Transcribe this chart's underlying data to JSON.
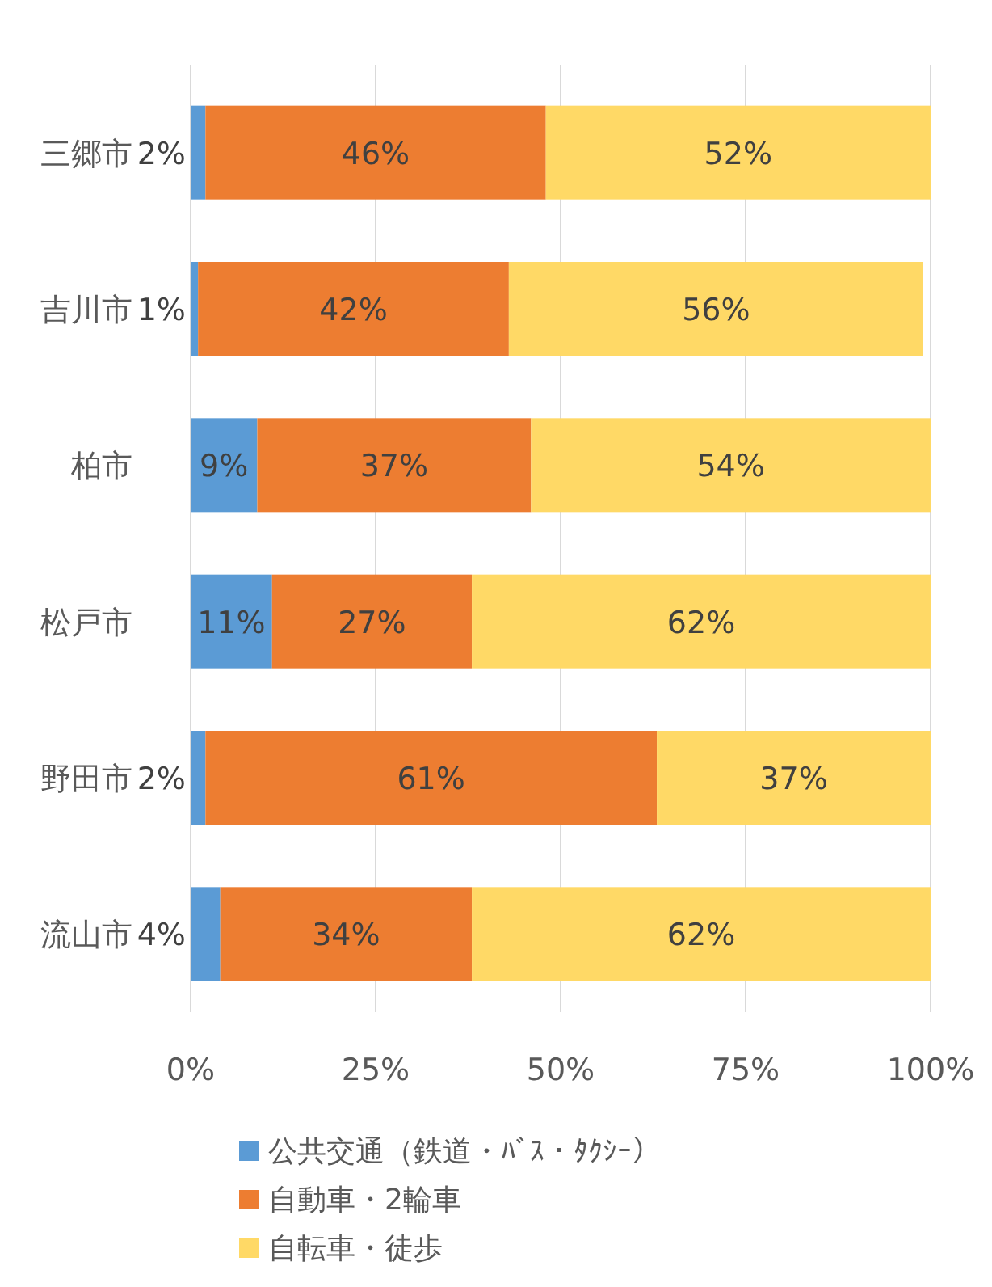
{
  "chart_data": {
    "type": "bar",
    "orientation": "horizontal",
    "stacked": true,
    "categories": [
      "三郷市",
      "吉川市",
      "柏市",
      "松戸市",
      "野田市",
      "流山市"
    ],
    "series": [
      {
        "name": "公共交通（鉄道・ﾊﾞｽ・ﾀｸｼｰ）",
        "color": "#5b9bd5",
        "values": [
          2,
          1,
          9,
          11,
          2,
          4
        ],
        "value_labels": [
          "2%",
          "1%",
          "9%",
          "11%",
          "2%",
          "4%"
        ]
      },
      {
        "name": "自動車・2輪車",
        "color": "#ed7d31",
        "values": [
          46,
          42,
          37,
          27,
          61,
          34
        ],
        "value_labels": [
          "46%",
          "42%",
          "37%",
          "27%",
          "61%",
          "34%"
        ]
      },
      {
        "name": "自転車・徒歩",
        "color": "#ffd966",
        "values": [
          52,
          56,
          54,
          62,
          37,
          62
        ],
        "value_labels": [
          "52%",
          "56%",
          "54%",
          "62%",
          "37%",
          "62%"
        ]
      }
    ],
    "xlim": [
      0,
      100
    ],
    "xticks": [
      {
        "value": 0,
        "label": "0%"
      },
      {
        "value": 25,
        "label": "25%"
      },
      {
        "value": 50,
        "label": "50%"
      },
      {
        "value": 75,
        "label": "75%"
      },
      {
        "value": 100,
        "label": "100%"
      }
    ],
    "grid": "x",
    "legend": "bottom"
  }
}
